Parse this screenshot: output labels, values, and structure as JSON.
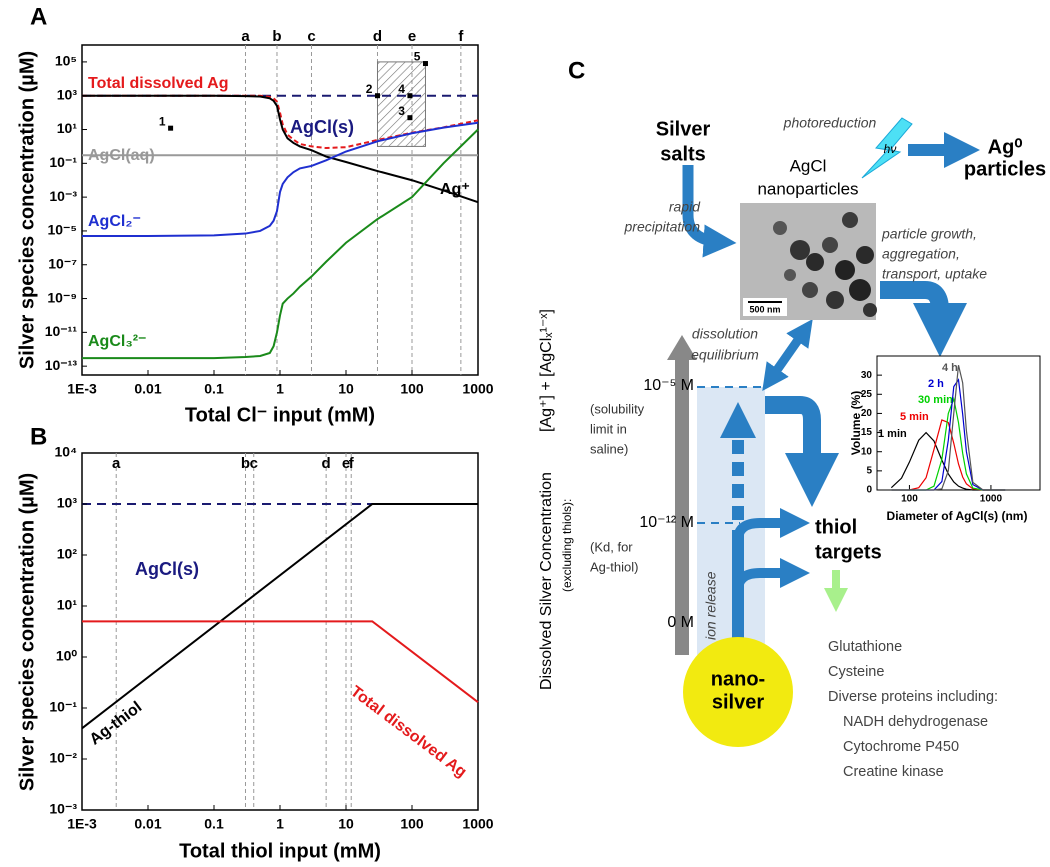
{
  "chart_data": [
    {
      "type": "line",
      "panel_label": "A",
      "y_label": "Silver species concentration (µM)",
      "x_label": "Total Cl⁻ input (mM)",
      "xscale": "log",
      "yscale": "log",
      "xlim": [
        0.001,
        1000
      ],
      "ylim": [
        3e-14,
        1000000
      ],
      "xticks": [
        {
          "value": 0.001,
          "label": "1E-3"
        },
        0.01,
        0.1,
        1,
        10,
        100,
        1000
      ],
      "yticks": [
        {
          "value": 100000,
          "label": "10⁵"
        },
        {
          "value": 1000,
          "label": "10³"
        },
        {
          "value": 10,
          "label": "10¹"
        },
        {
          "value": 0.1,
          "label": "10⁻¹"
        },
        {
          "value": 0.001,
          "label": "10⁻³"
        },
        {
          "value": 1e-05,
          "label": "10⁻⁵"
        },
        {
          "value": 1e-07,
          "label": "10⁻⁷"
        },
        {
          "value": 1e-09,
          "label": "10⁻⁹"
        },
        {
          "value": 1e-11,
          "label": "10⁻¹¹"
        },
        {
          "value": 1e-13,
          "label": "10⁻¹³"
        }
      ],
      "x": [
        0.001,
        0.01,
        0.1,
        0.3,
        0.5,
        0.7,
        0.8,
        0.9,
        1,
        1.1,
        1.3,
        1.6,
        2,
        3,
        5,
        10,
        30,
        100,
        300,
        1000
      ],
      "series": [
        {
          "name": "Total dissolved Ag",
          "color": "#e41a1c",
          "style": "dashed",
          "values": [
            1000,
            1000,
            1000,
            1000,
            1000,
            850,
            700,
            450,
            100,
            20,
            5,
            2.5,
            1.4,
            1,
            0.8,
            0.9,
            2.4,
            6.5,
            13.5,
            35
          ]
        },
        {
          "name": "AgCl(aq)",
          "color": "#999999",
          "values": [
            0.3,
            0.3,
            0.3,
            0.3,
            0.3,
            0.3,
            0.3,
            0.3,
            0.3,
            0.3,
            0.3,
            0.3,
            0.3,
            0.3,
            0.3,
            0.3,
            0.3,
            0.3,
            0.3,
            0.3
          ]
        },
        {
          "name": "Ag⁺",
          "color": "#000000",
          "values": [
            1000,
            1000,
            990,
            950,
            900,
            700,
            500,
            250,
            40,
            10,
            3,
            1.6,
            1,
            0.6,
            0.25,
            0.12,
            0.035,
            0.01,
            0.0025,
            0.0005
          ]
        },
        {
          "name": "AgCl₂⁻",
          "color": "#1f2fd0",
          "values": [
            5e-06,
            5e-06,
            5.5e-06,
            7e-06,
            1e-05,
            2e-05,
            4e-05,
            0.00015,
            0.002,
            0.006,
            0.015,
            0.03,
            0.05,
            0.07,
            0.15,
            0.5,
            2,
            6,
            13,
            25
          ]
        },
        {
          "name": "AgCl₃²⁻",
          "color": "#1a8a1a",
          "values": [
            3e-13,
            3e-13,
            3e-13,
            3.5e-13,
            4e-13,
            6e-13,
            1.5e-12,
            1e-11,
            1e-10,
            5e-10,
            1e-09,
            2e-09,
            5e-09,
            2e-08,
            1.5e-07,
            2e-06,
            5e-05,
            0.001,
            0.1,
            10
          ]
        }
      ],
      "reference_line": {
        "value": 1000,
        "color": "#1a1a70"
      },
      "vlines": [
        {
          "value": 0.3,
          "label": "a"
        },
        {
          "value": 0.9,
          "label": "b"
        },
        {
          "value": 3,
          "label": "c"
        },
        {
          "value": 30,
          "label": "d"
        },
        {
          "value": 100,
          "label": "e"
        },
        {
          "value": 550,
          "label": "f"
        }
      ],
      "annotations": [
        {
          "text": "AgCl(s)",
          "color": "#1a1a80"
        }
      ],
      "points": {
        "labels": [
          "1",
          "2",
          "3",
          "4",
          "5"
        ],
        "x": [
          0.022,
          30,
          93,
          93,
          160
        ],
        "y": [
          12,
          1000,
          50,
          1000,
          80000
        ]
      },
      "region": {
        "x": [
          30,
          160
        ],
        "y": [
          1,
          100000
        ]
      }
    },
    {
      "type": "line",
      "panel_label": "B",
      "y_label": "Silver species concentration (µM)",
      "x_label": "Total thiol input (mM)",
      "xscale": "log",
      "yscale": "log",
      "xlim": [
        0.001,
        1000
      ],
      "ylim": [
        0.001,
        10000
      ],
      "xticks": [
        {
          "value": 0.001,
          "label": "1E-3"
        },
        0.01,
        0.1,
        1,
        10,
        100,
        1000
      ],
      "yticks": [
        {
          "value": 10000,
          "label": "10⁴"
        },
        {
          "value": 1000,
          "label": "10³"
        },
        {
          "value": 100,
          "label": "10²"
        },
        {
          "value": 10,
          "label": "10¹"
        },
        {
          "value": 1,
          "label": "10⁰"
        },
        {
          "value": 0.1,
          "label": "10⁻¹"
        },
        {
          "value": 0.01,
          "label": "10⁻²"
        },
        {
          "value": 0.001,
          "label": "10⁻³"
        }
      ],
      "x": [
        0.001,
        25,
        1000
      ],
      "series": [
        {
          "name": "Ag-thiol",
          "color": "#000000",
          "values": [
            0.04,
            1000,
            1000
          ]
        },
        {
          "name": "Total dissolved Ag",
          "color": "#e41a1c",
          "values": [
            5,
            5,
            0.13
          ]
        }
      ],
      "reference_line": {
        "value": 1000,
        "color": "#1a1a70"
      },
      "vlines": [
        {
          "value": 0.0033,
          "label": "a"
        },
        {
          "value": 0.3,
          "label": "b"
        },
        {
          "value": 0.4,
          "label": "c"
        },
        {
          "value": 5,
          "label": "d"
        },
        {
          "value": 10,
          "label": "e"
        },
        {
          "value": 12,
          "label": "f"
        }
      ],
      "annotations": [
        {
          "text": "AgCl(s)",
          "color": "#1a1a80"
        }
      ]
    },
    {
      "type": "line",
      "y_label": "Volume (%)",
      "x_label": "Diameter of AgCl(s) (nm)",
      "xscale": "log",
      "xlim": [
        40,
        4000
      ],
      "ylim": [
        0,
        35
      ],
      "xticks": [
        100,
        1000
      ],
      "yticks": [
        0,
        5,
        10,
        15,
        20,
        25,
        30
      ],
      "x": [
        60,
        80,
        100,
        130,
        160,
        200,
        250,
        300,
        350,
        400,
        450,
        500,
        600,
        800,
        1000,
        1500
      ],
      "series": [
        {
          "name": "1 min",
          "color": "#000000",
          "values": [
            0.6,
            3.1,
            7.3,
            13,
            15,
            12.8,
            7.8,
            4.2,
            2.1,
            1,
            0.5,
            0.2,
            0,
            0,
            0,
            0
          ]
        },
        {
          "name": "5 min",
          "color": "#ee0000",
          "values": [
            0,
            0,
            0,
            0.6,
            3.2,
            10.6,
            18.3,
            17.6,
            12.2,
            6.8,
            3.4,
            1.6,
            0.3,
            0,
            0,
            0
          ]
        },
        {
          "name": "30 min",
          "color": "#00d000",
          "values": [
            0,
            0,
            0,
            0,
            0,
            1,
            8,
            20,
            23.8,
            17.6,
            9.6,
            4.2,
            0.5,
            0,
            0,
            0
          ]
        },
        {
          "name": "2 h",
          "color": "#0000d0",
          "values": [
            0,
            0,
            0,
            0,
            0,
            0,
            2.2,
            13,
            27,
            28.8,
            19.8,
            10,
            1.4,
            0,
            0,
            0
          ]
        },
        {
          "name": "4 h",
          "color": "#555555",
          "values": [
            0,
            0,
            0,
            0,
            0,
            0,
            0.3,
            5,
            20,
            32.6,
            28,
            15.5,
            2,
            0,
            0,
            0
          ]
        }
      ]
    }
  ],
  "diagram": {
    "label": "C",
    "silver_salts": [
      "Silver",
      "salts"
    ],
    "nanoparticles": [
      "AgCl",
      "nanoparticles"
    ],
    "scale_bar": "500 nm",
    "photoreduction": "photoreduction",
    "h_nu": "hν",
    "ag0": [
      "Ag⁰",
      "particles"
    ],
    "precipitation": [
      "rapid",
      "precipitation"
    ],
    "growth": [
      "particle growth,",
      "aggregation,",
      "transport, uptake"
    ],
    "dissolution": [
      "dissolution",
      "equilibrium"
    ],
    "axis_label": [
      "Dissolved Silver Concentration",
      "(excluding thiols):",
      "[Ag⁺] + [AgClₓ¹⁻ˣ]"
    ],
    "levels": [
      {
        "label": "10⁻⁵ M",
        "note": [
          "(solubility",
          "limit in",
          "saline)"
        ]
      },
      {
        "label": "10⁻¹² M",
        "note": [
          "(Kd, for",
          "Ag-thiol)"
        ]
      },
      {
        "label": "0 M"
      }
    ],
    "ion_release": "ion release",
    "thiol_targets": [
      "thiol",
      "targets"
    ],
    "nanosilver": [
      "nano-",
      "silver"
    ],
    "targets": [
      "Glutathione",
      "Cysteine",
      "Diverse proteins including:",
      "NADH dehydrogenase",
      "Cytochrome P450",
      "Creatine kinase"
    ]
  }
}
